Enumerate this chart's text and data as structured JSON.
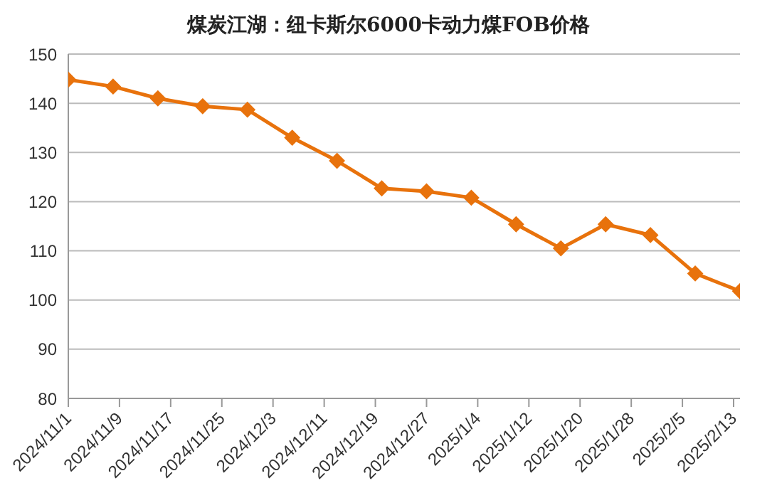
{
  "chart_data": {
    "type": "line",
    "title": "煤炭江湖：纽卡斯尔6000卡动力煤FOB价格",
    "x": [
      "2024-11-01",
      "2024-11-08",
      "2024-11-15",
      "2024-11-22",
      "2024-11-29",
      "2024-12-06",
      "2024-12-13",
      "2024-12-20",
      "2024-12-27",
      "2025-01-03",
      "2025-01-10",
      "2025-01-17",
      "2025-01-24",
      "2025-01-31",
      "2025-02-07",
      "2025-02-14"
    ],
    "series": [
      {
        "color": "#e8720c",
        "values": [
          144.8,
          143.4,
          141.0,
          139.4,
          138.7,
          133.0,
          128.3,
          122.7,
          122.1,
          120.8,
          115.4,
          110.5,
          115.4,
          113.2,
          105.4,
          101.8
        ]
      }
    ],
    "xlim": [
      "2024-11-01",
      "2025-02-14"
    ],
    "xticks": [
      {
        "value": "2024-11-01",
        "label": "2024/11/1"
      },
      {
        "value": "2024-11-09",
        "label": "2024/11/9"
      },
      {
        "value": "2024-11-17",
        "label": "2024/11/17"
      },
      {
        "value": "2024-11-25",
        "label": "2024/11/25"
      },
      {
        "value": "2024-12-03",
        "label": "2024/12/3"
      },
      {
        "value": "2024-12-11",
        "label": "2024/12/11"
      },
      {
        "value": "2024-12-19",
        "label": "2024/12/19"
      },
      {
        "value": "2024-12-27",
        "label": "2024/12/27"
      },
      {
        "value": "2025-01-04",
        "label": "2025/1/4"
      },
      {
        "value": "2025-01-12",
        "label": "2025/1/12"
      },
      {
        "value": "2025-01-20",
        "label": "2025/1/20"
      },
      {
        "value": "2025-01-28",
        "label": "2025/1/28"
      },
      {
        "value": "2025-02-05",
        "label": "2025/2/5"
      },
      {
        "value": "2025-02-13",
        "label": "2025/2/13"
      }
    ],
    "ylim": [
      80,
      150
    ],
    "yticks": [
      80,
      90,
      100,
      110,
      120,
      130,
      140,
      150
    ],
    "grid": "y",
    "marker": "diamond",
    "line_style": "solid"
  }
}
